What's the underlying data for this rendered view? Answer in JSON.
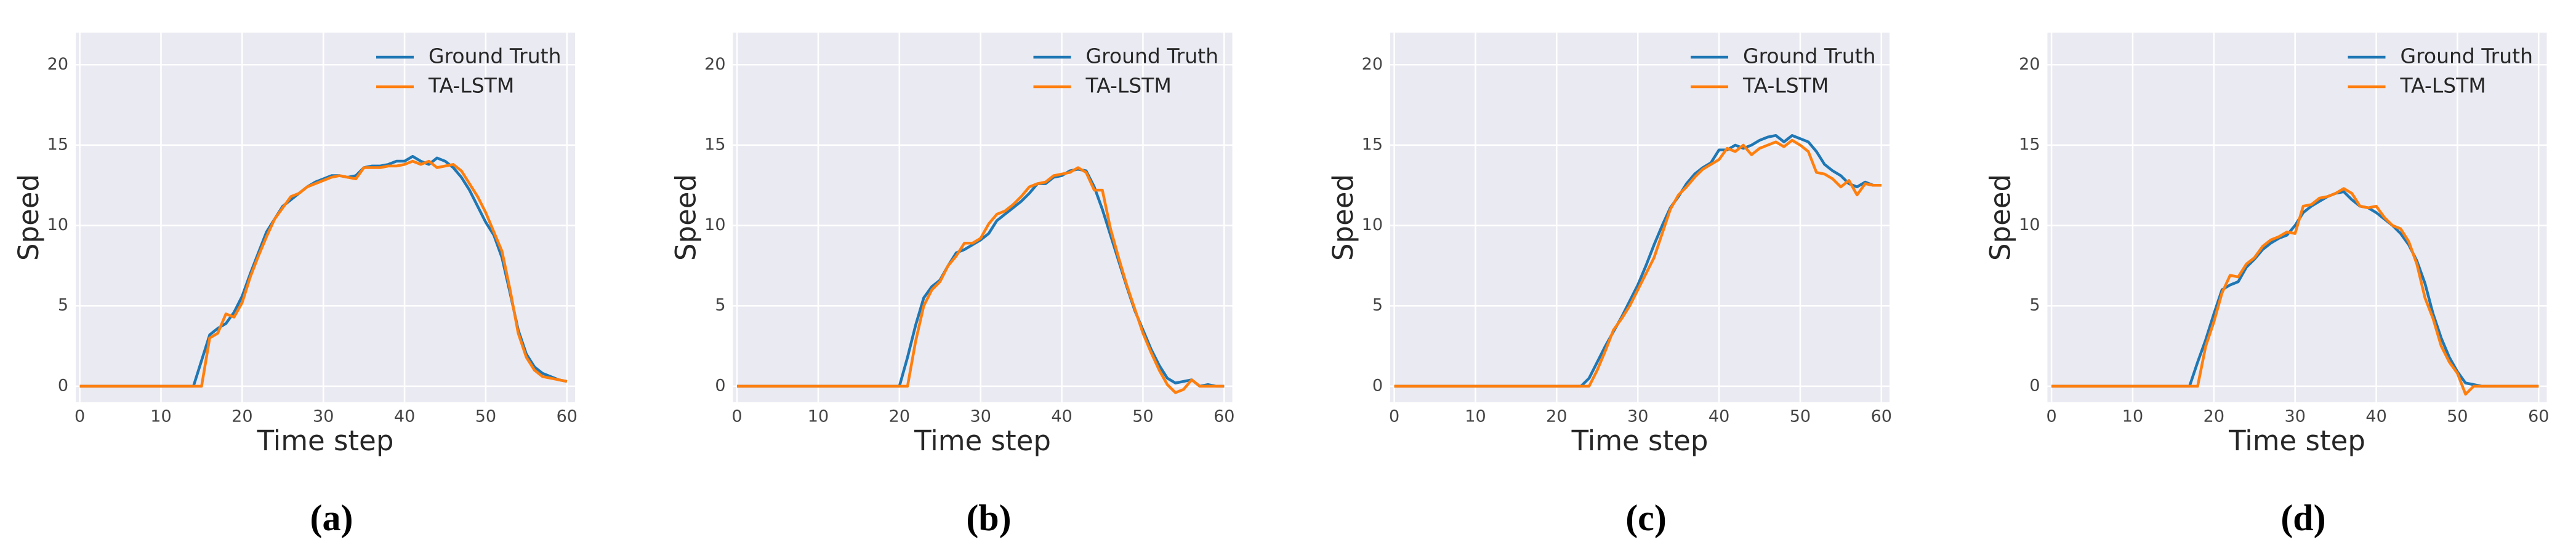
{
  "chart_data": [
    {
      "type": "line",
      "caption": "(a)",
      "x_label": "Time step",
      "y_label": "Speed",
      "x": [
        0,
        1,
        2,
        3,
        4,
        5,
        6,
        7,
        8,
        9,
        10,
        11,
        12,
        13,
        14,
        15,
        16,
        17,
        18,
        19,
        20,
        21,
        22,
        23,
        24,
        25,
        26,
        27,
        28,
        29,
        30,
        31,
        32,
        33,
        34,
        35,
        36,
        37,
        38,
        39,
        40,
        41,
        42,
        43,
        44,
        45,
        46,
        47,
        48,
        49,
        50,
        51,
        52,
        53,
        54,
        55,
        56,
        57,
        58,
        59,
        60
      ],
      "series": [
        {
          "name": "Ground Truth",
          "color": "#1f77b4",
          "values": [
            0,
            0,
            0,
            0,
            0,
            0,
            0,
            0,
            0,
            0,
            0,
            0,
            0,
            0,
            0,
            1.6,
            3.2,
            3.6,
            3.9,
            4.6,
            5.6,
            7,
            8.3,
            9.6,
            10.4,
            11.2,
            11.6,
            12,
            12.4,
            12.7,
            12.9,
            13.1,
            13.1,
            13,
            13.1,
            13.6,
            13.7,
            13.7,
            13.8,
            14,
            14,
            14.3,
            14,
            13.8,
            14.2,
            14,
            13.6,
            13,
            12.2,
            11.2,
            10.2,
            9.4,
            8,
            5.8,
            3.5,
            2,
            1.2,
            0.8,
            0.6,
            0.4,
            0.3
          ]
        },
        {
          "name": "TA-LSTM",
          "color": "#ff7f0e",
          "values": [
            0,
            0,
            0,
            0,
            0,
            0,
            0,
            0,
            0,
            0,
            0,
            0,
            0,
            0,
            0,
            0,
            3,
            3.3,
            4.5,
            4.3,
            5.2,
            6.8,
            8.1,
            9.3,
            10.4,
            11.1,
            11.8,
            12,
            12.4,
            12.6,
            12.8,
            13,
            13.1,
            13,
            12.9,
            13.6,
            13.6,
            13.6,
            13.7,
            13.7,
            13.8,
            14,
            13.8,
            14,
            13.6,
            13.7,
            13.8,
            13.4,
            12.6,
            11.8,
            10.8,
            9.6,
            8.4,
            6,
            3.3,
            1.8,
            1,
            0.6,
            0.5,
            0.4,
            0.3
          ]
        }
      ],
      "xlim": [
        -0.5,
        61
      ],
      "ylim": [
        -1,
        22
      ],
      "xticks": [
        0,
        10,
        20,
        30,
        40,
        50,
        60
      ],
      "yticks": [
        0,
        5,
        10,
        15,
        20
      ],
      "grid": true,
      "legend": "upper right"
    },
    {
      "type": "line",
      "caption": "(b)",
      "x_label": "Time step",
      "y_label": "Speed",
      "x": [
        0,
        1,
        2,
        3,
        4,
        5,
        6,
        7,
        8,
        9,
        10,
        11,
        12,
        13,
        14,
        15,
        16,
        17,
        18,
        19,
        20,
        21,
        22,
        23,
        24,
        25,
        26,
        27,
        28,
        29,
        30,
        31,
        32,
        33,
        34,
        35,
        36,
        37,
        38,
        39,
        40,
        41,
        42,
        43,
        44,
        45,
        46,
        47,
        48,
        49,
        50,
        51,
        52,
        53,
        54,
        55,
        56,
        57,
        58,
        59,
        60
      ],
      "series": [
        {
          "name": "Ground Truth",
          "color": "#1f77b4",
          "values": [
            0,
            0,
            0,
            0,
            0,
            0,
            0,
            0,
            0,
            0,
            0,
            0,
            0,
            0,
            0,
            0,
            0,
            0,
            0,
            0,
            0,
            1.8,
            3.8,
            5.5,
            6.2,
            6.6,
            7.5,
            8.3,
            8.5,
            8.8,
            9.1,
            9.5,
            10.3,
            10.7,
            11.1,
            11.5,
            12,
            12.6,
            12.6,
            13,
            13.1,
            13.4,
            13.5,
            13.4,
            12.4,
            11,
            9.4,
            7.8,
            6.2,
            4.7,
            3.5,
            2.3,
            1.3,
            0.5,
            0.2,
            0.3,
            0.4,
            0,
            0.1,
            0,
            0
          ]
        },
        {
          "name": "TA-LSTM",
          "color": "#ff7f0e",
          "values": [
            0,
            0,
            0,
            0,
            0,
            0,
            0,
            0,
            0,
            0,
            0,
            0,
            0,
            0,
            0,
            0,
            0,
            0,
            0,
            0,
            0,
            0,
            2.8,
            5,
            6,
            6.5,
            7.5,
            8.1,
            8.9,
            8.9,
            9.2,
            10.1,
            10.7,
            10.9,
            11.3,
            11.8,
            12.4,
            12.6,
            12.7,
            13.1,
            13.2,
            13.3,
            13.6,
            13.3,
            12.2,
            12.2,
            9.8,
            8,
            6.3,
            4.8,
            3.3,
            2.1,
            1,
            0.1,
            -0.4,
            -0.2,
            0.4,
            0,
            0,
            0,
            0
          ]
        }
      ],
      "xlim": [
        -0.5,
        61
      ],
      "ylim": [
        -1,
        22
      ],
      "xticks": [
        0,
        10,
        20,
        30,
        40,
        50,
        60
      ],
      "yticks": [
        0,
        5,
        10,
        15,
        20
      ],
      "grid": true,
      "legend": "upper right"
    },
    {
      "type": "line",
      "caption": "(c)",
      "x_label": "Time step",
      "y_label": "Speed",
      "x": [
        0,
        1,
        2,
        3,
        4,
        5,
        6,
        7,
        8,
        9,
        10,
        11,
        12,
        13,
        14,
        15,
        16,
        17,
        18,
        19,
        20,
        21,
        22,
        23,
        24,
        25,
        26,
        27,
        28,
        29,
        30,
        31,
        32,
        33,
        34,
        35,
        36,
        37,
        38,
        39,
        40,
        41,
        42,
        43,
        44,
        45,
        46,
        47,
        48,
        49,
        50,
        51,
        52,
        53,
        54,
        55,
        56,
        57,
        58,
        59,
        60
      ],
      "series": [
        {
          "name": "Ground Truth",
          "color": "#1f77b4",
          "values": [
            0,
            0,
            0,
            0,
            0,
            0,
            0,
            0,
            0,
            0,
            0,
            0,
            0,
            0,
            0,
            0,
            0,
            0,
            0,
            0,
            0,
            0,
            0,
            0,
            0.5,
            1.5,
            2.5,
            3.4,
            4.3,
            5.3,
            6.3,
            7.5,
            8.8,
            10,
            11.1,
            11.8,
            12.6,
            13.2,
            13.6,
            13.9,
            14.7,
            14.7,
            15,
            14.8,
            15,
            15.3,
            15.5,
            15.6,
            15.2,
            15.6,
            15.4,
            15.2,
            14.6,
            13.8,
            13.4,
            13.1,
            12.6,
            12.4,
            12.7,
            12.5,
            12.5
          ]
        },
        {
          "name": "TA-LSTM",
          "color": "#ff7f0e",
          "values": [
            0,
            0,
            0,
            0,
            0,
            0,
            0,
            0,
            0,
            0,
            0,
            0,
            0,
            0,
            0,
            0,
            0,
            0,
            0,
            0,
            0,
            0,
            0,
            0,
            0,
            1,
            2.2,
            3.5,
            4.2,
            5,
            6,
            7,
            8,
            9.5,
            11,
            11.9,
            12.4,
            13,
            13.5,
            13.8,
            14.1,
            14.8,
            14.6,
            15,
            14.4,
            14.8,
            15,
            15.2,
            14.9,
            15.3,
            15,
            14.6,
            13.3,
            13.2,
            12.9,
            12.4,
            12.8,
            11.9,
            12.6,
            12.5,
            12.5
          ]
        }
      ],
      "xlim": [
        -0.5,
        61
      ],
      "ylim": [
        -1,
        22
      ],
      "xticks": [
        0,
        10,
        20,
        30,
        40,
        50,
        60
      ],
      "yticks": [
        0,
        5,
        10,
        15,
        20
      ],
      "grid": true,
      "legend": "upper right"
    },
    {
      "type": "line",
      "caption": "(d)",
      "x_label": "Time step",
      "y_label": "Speed",
      "x": [
        0,
        1,
        2,
        3,
        4,
        5,
        6,
        7,
        8,
        9,
        10,
        11,
        12,
        13,
        14,
        15,
        16,
        17,
        18,
        19,
        20,
        21,
        22,
        23,
        24,
        25,
        26,
        27,
        28,
        29,
        30,
        31,
        32,
        33,
        34,
        35,
        36,
        37,
        38,
        39,
        40,
        41,
        42,
        43,
        44,
        45,
        46,
        47,
        48,
        49,
        50,
        51,
        52,
        53,
        54,
        55,
        56,
        57,
        58,
        59,
        60
      ],
      "series": [
        {
          "name": "Ground Truth",
          "color": "#1f77b4",
          "values": [
            0,
            0,
            0,
            0,
            0,
            0,
            0,
            0,
            0,
            0,
            0,
            0,
            0,
            0,
            0,
            0,
            0,
            0,
            1.5,
            2.9,
            4.5,
            6,
            6.3,
            6.5,
            7.4,
            7.9,
            8.5,
            8.9,
            9.2,
            9.4,
            10,
            10.8,
            11.2,
            11.5,
            11.8,
            12,
            12.1,
            11.6,
            11.2,
            11.1,
            10.8,
            10.4,
            10,
            9.5,
            8.8,
            7.8,
            6.4,
            4.5,
            3,
            1.8,
            0.9,
            0.2,
            0.1,
            0,
            0,
            0,
            0,
            0,
            0,
            0,
            0
          ]
        },
        {
          "name": "TA-LSTM",
          "color": "#ff7f0e",
          "values": [
            0,
            0,
            0,
            0,
            0,
            0,
            0,
            0,
            0,
            0,
            0,
            0,
            0,
            0,
            0,
            0,
            0,
            0,
            0,
            2.5,
            4,
            5.8,
            6.9,
            6.8,
            7.6,
            8,
            8.7,
            9.1,
            9.3,
            9.6,
            9.5,
            11.2,
            11.3,
            11.7,
            11.8,
            12,
            12.3,
            12,
            11.2,
            11.1,
            11.2,
            10.5,
            10,
            9.8,
            9,
            7.6,
            5.5,
            4.2,
            2.5,
            1.5,
            0.8,
            -0.5,
            0,
            0,
            0,
            0,
            0,
            0,
            0,
            0,
            0
          ]
        }
      ],
      "xlim": [
        -0.5,
        61
      ],
      "ylim": [
        -1,
        22
      ],
      "xticks": [
        0,
        10,
        20,
        30,
        40,
        50,
        60
      ],
      "yticks": [
        0,
        5,
        10,
        15,
        20
      ],
      "grid": true,
      "legend": "upper right"
    }
  ]
}
